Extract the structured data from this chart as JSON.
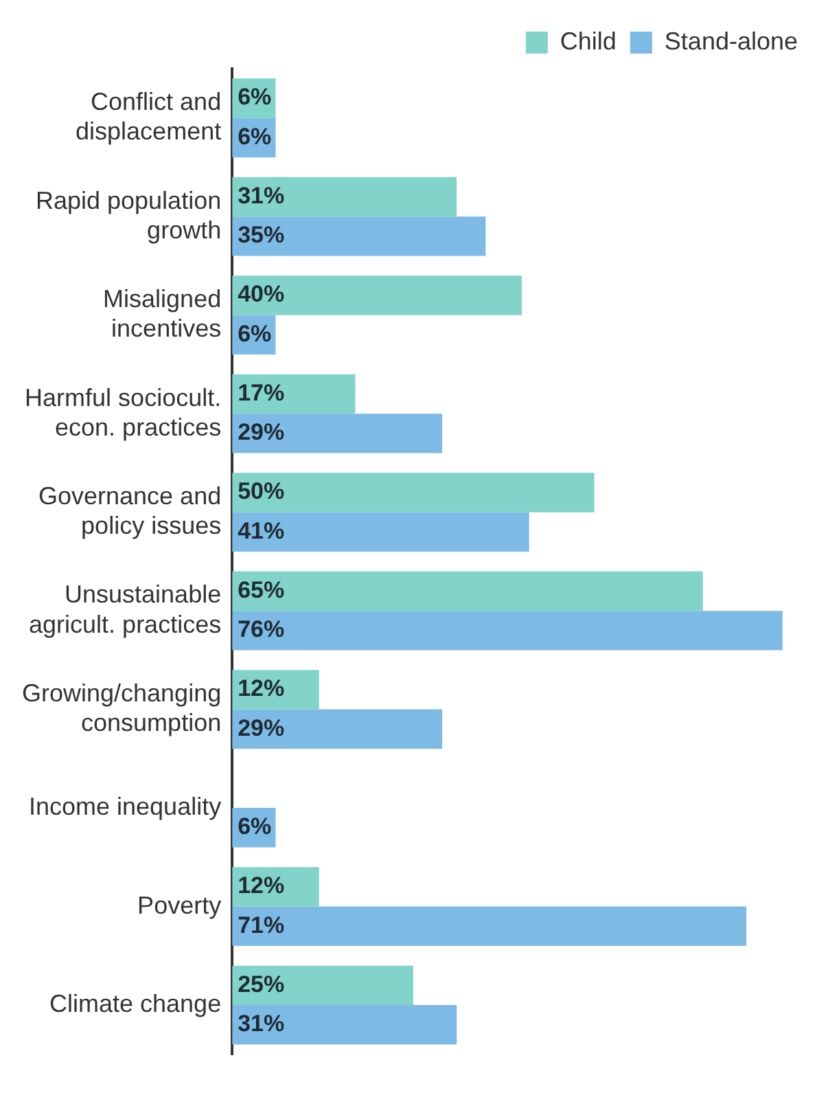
{
  "chart_data": {
    "type": "bar",
    "orientation": "horizontal",
    "categories": [
      "Conflict and displacement",
      "Rapid population growth",
      "Misaligned incentives",
      "Harmful sociocult. econ. practices",
      "Governance and policy issues",
      "Unsustainable agricult. practices",
      "Growing/changing consumption",
      "Income inequality",
      "Poverty",
      "Climate change"
    ],
    "series": [
      {
        "name": "Child",
        "color": "#82d3c9",
        "values": [
          6,
          31,
          40,
          17,
          50,
          65,
          12,
          null,
          12,
          25
        ],
        "value_labels": [
          "6%",
          "31%",
          "40%",
          "17%",
          "50%",
          "65%",
          "12%",
          null,
          "12%",
          "25%"
        ]
      },
      {
        "name": "Stand-alone",
        "color": "#7dbbe6",
        "values": [
          6,
          35,
          6,
          29,
          41,
          76,
          29,
          6,
          71,
          31
        ],
        "value_labels": [
          "6%",
          "35%",
          "6%",
          "29%",
          "41%",
          "76%",
          "29%",
          "6%",
          "71%",
          "31%"
        ]
      }
    ],
    "legend": "top right",
    "grid": false
  }
}
